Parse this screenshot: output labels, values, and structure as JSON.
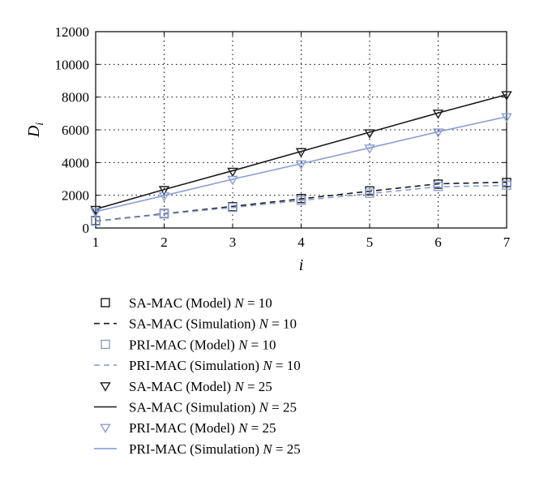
{
  "chart_data": {
    "type": "line",
    "xlabel": "i",
    "ylabel": "D",
    "ylabel_subscript": "i",
    "xlim": [
      1,
      7
    ],
    "ylim": [
      0,
      12000
    ],
    "x_ticks": [
      1,
      2,
      3,
      4,
      5,
      6,
      7
    ],
    "y_ticks": [
      0,
      2000,
      4000,
      6000,
      8000,
      10000,
      12000
    ],
    "grid": true,
    "legend_position": "below",
    "x": [
      1,
      2,
      3,
      4,
      5,
      6,
      7
    ],
    "series": [
      {
        "name": "SA-MAC (Model) N = 10",
        "label_main": "SA-MAC (Model) ",
        "label_var": "N",
        "label_tail": " = 10",
        "kind": "model",
        "marker": "square",
        "color": "#1a1a1a",
        "values": [
          450,
          880,
          1300,
          1800,
          2270,
          2680,
          2780
        ]
      },
      {
        "name": "SA-MAC (Simulation) N = 10",
        "label_main": "SA-MAC (Simulation) ",
        "label_var": "N",
        "label_tail": " = 10",
        "kind": "simulation",
        "dash": "dashed",
        "color": "#1a1a1a",
        "values": [
          420,
          870,
          1320,
          1780,
          2250,
          2700,
          2800
        ]
      },
      {
        "name": "PRI-MAC (Model) N = 10",
        "label_main": "PRI-MAC (Model) ",
        "label_var": "N",
        "label_tail": " = 10",
        "kind": "model",
        "marker": "square",
        "color": "#8a9ed6",
        "values": [
          420,
          860,
          1260,
          1690,
          2130,
          2540,
          2620
        ]
      },
      {
        "name": "PRI-MAC (Simulation) N = 10",
        "label_main": "PRI-MAC (Simulation) ",
        "label_var": "N",
        "label_tail": " = 10",
        "kind": "simulation",
        "dash": "dashed",
        "color": "#8a9ed6",
        "values": [
          400,
          840,
          1250,
          1680,
          2100,
          2520,
          2600
        ]
      },
      {
        "name": "SA-MAC (Model) N = 25",
        "label_main": "SA-MAC (Model) ",
        "label_var": "N",
        "label_tail": " = 25",
        "kind": "model",
        "marker": "triangle-down",
        "color": "#1a1a1a",
        "values": [
          1120,
          2330,
          3450,
          4650,
          5800,
          7000,
          8130
        ]
      },
      {
        "name": "SA-MAC (Simulation) N = 25",
        "label_main": "SA-MAC (Simulation) ",
        "label_var": "N",
        "label_tail": " = 25",
        "kind": "simulation",
        "dash": "solid",
        "color": "#1a1a1a",
        "values": [
          1150,
          2350,
          3500,
          4680,
          5850,
          7030,
          8150
        ]
      },
      {
        "name": "PRI-MAC (Model) N = 25",
        "label_main": "PRI-MAC (Model) ",
        "label_var": "N",
        "label_tail": " = 25",
        "kind": "model",
        "marker": "triangle-down",
        "color": "#8a9ed6",
        "values": [
          980,
          1950,
          2950,
          3900,
          4870,
          5850,
          6780
        ]
      },
      {
        "name": "PRI-MAC (Simulation) N = 25",
        "label_main": "PRI-MAC (Simulation) ",
        "label_var": "N",
        "label_tail": " = 25",
        "kind": "simulation",
        "dash": "solid",
        "color": "#8a9ed6",
        "values": [
          1000,
          1980,
          2980,
          3930,
          4900,
          5880,
          6800
        ]
      }
    ]
  }
}
